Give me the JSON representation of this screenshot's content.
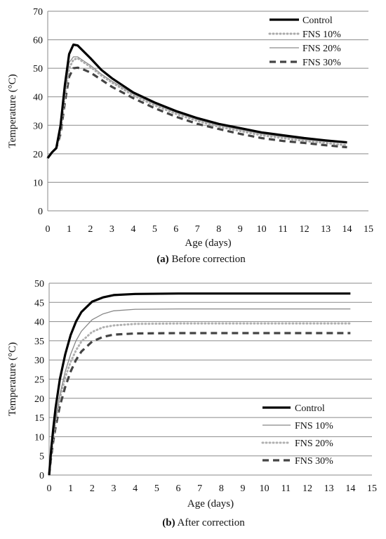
{
  "chart_data": [
    {
      "type": "line",
      "caption": {
        "label": "(a)",
        "text": " Before correction"
      },
      "xlabel": "Age (days)",
      "ylabel": "Temperature (°C)",
      "xlim": [
        0,
        15
      ],
      "ylim": [
        0,
        70
      ],
      "xticks": [
        "0",
        "1",
        "2",
        "3",
        "4",
        "5",
        "6",
        "7",
        "8",
        "9",
        "10",
        "11",
        "12",
        "13",
        "14",
        "15"
      ],
      "yticks": [
        "0",
        "10",
        "20",
        "30",
        "40",
        "50",
        "60",
        "70"
      ],
      "grid": "horizontal",
      "legend_position": "top-right",
      "series": [
        {
          "name": "Control",
          "color": "#000000",
          "style": "solid-thick",
          "points": [
            [
              0,
              18.5
            ],
            [
              0.2,
              20.5
            ],
            [
              0.4,
              22
            ],
            [
              0.6,
              30
            ],
            [
              0.8,
              44
            ],
            [
              1.0,
              55
            ],
            [
              1.2,
              58.3
            ],
            [
              1.4,
              58
            ],
            [
              1.6,
              56.5
            ],
            [
              2,
              53.5
            ],
            [
              2.5,
              49.5
            ],
            [
              3,
              46.5
            ],
            [
              4,
              41.5
            ],
            [
              5,
              38
            ],
            [
              6,
              35
            ],
            [
              7,
              32.5
            ],
            [
              8,
              30.5
            ],
            [
              9,
              29
            ],
            [
              10,
              27.5
            ],
            [
              11,
              26.5
            ],
            [
              12,
              25.5
            ],
            [
              13,
              24.7
            ],
            [
              14,
              24
            ]
          ]
        },
        {
          "name": "FNS 10%",
          "color": "#aaaaaa",
          "style": "dotted",
          "points": [
            [
              0,
              18.5
            ],
            [
              0.2,
              20.5
            ],
            [
              0.4,
              22
            ],
            [
              0.6,
              28
            ],
            [
              0.8,
              40
            ],
            [
              1.0,
              50
            ],
            [
              1.2,
              53
            ],
            [
              1.4,
              53.5
            ],
            [
              1.6,
              52.5
            ],
            [
              2,
              50.5
            ],
            [
              2.5,
              47.5
            ],
            [
              3,
              45
            ],
            [
              4,
              40.5
            ],
            [
              5,
              37
            ],
            [
              6,
              34
            ],
            [
              7,
              31.5
            ],
            [
              8,
              29.5
            ],
            [
              9,
              28
            ],
            [
              10,
              26.5
            ],
            [
              11,
              25.5
            ],
            [
              12,
              24.5
            ],
            [
              13,
              23.8
            ],
            [
              14,
              23
            ]
          ]
        },
        {
          "name": "FNS 20%",
          "color": "#8c8c8c",
          "style": "solid-thin",
          "points": [
            [
              0,
              18.5
            ],
            [
              0.2,
              20.5
            ],
            [
              0.4,
              22
            ],
            [
              0.6,
              29
            ],
            [
              0.8,
              42
            ],
            [
              1.0,
              52
            ],
            [
              1.2,
              54
            ],
            [
              1.4,
              54
            ],
            [
              1.6,
              53
            ],
            [
              2,
              51
            ],
            [
              2.5,
              48
            ],
            [
              3,
              45.5
            ],
            [
              4,
              41
            ],
            [
              5,
              37.5
            ],
            [
              6,
              34.5
            ],
            [
              7,
              32
            ],
            [
              8,
              30
            ],
            [
              9,
              28.5
            ],
            [
              10,
              27
            ],
            [
              11,
              26
            ],
            [
              12,
              25
            ],
            [
              13,
              24.3
            ],
            [
              14,
              23.8
            ]
          ]
        },
        {
          "name": "FNS 30%",
          "color": "#444444",
          "style": "dashed",
          "points": [
            [
              0,
              18.5
            ],
            [
              0.2,
              20.5
            ],
            [
              0.4,
              22
            ],
            [
              0.6,
              27
            ],
            [
              0.8,
              38
            ],
            [
              1.0,
              47
            ],
            [
              1.2,
              50
            ],
            [
              1.4,
              50.2
            ],
            [
              1.6,
              49.8
            ],
            [
              2,
              48.5
            ],
            [
              2.5,
              46
            ],
            [
              3,
              43.5
            ],
            [
              4,
              39.5
            ],
            [
              5,
              36
            ],
            [
              6,
              33
            ],
            [
              7,
              30.5
            ],
            [
              8,
              28.7
            ],
            [
              9,
              27
            ],
            [
              10,
              25.5
            ],
            [
              11,
              24.5
            ],
            [
              12,
              23.8
            ],
            [
              13,
              23
            ],
            [
              14,
              22.3
            ]
          ]
        }
      ]
    },
    {
      "type": "line",
      "caption": {
        "label": "(b)",
        "text": " After correction"
      },
      "xlabel": "Age (days)",
      "ylabel": "Temperature (°C)",
      "xlim": [
        0,
        15
      ],
      "ylim": [
        0,
        50
      ],
      "xticks": [
        "0",
        "1",
        "2",
        "3",
        "4",
        "5",
        "6",
        "7",
        "8",
        "9",
        "10",
        "11",
        "12",
        "13",
        "14",
        "15"
      ],
      "yticks": [
        "0",
        "5",
        "10",
        "15",
        "20",
        "25",
        "30",
        "35",
        "40",
        "45",
        "50"
      ],
      "grid": "horizontal",
      "legend_position": "bottom-right",
      "series": [
        {
          "name": "Control",
          "color": "#000000",
          "style": "solid-thick",
          "points": [
            [
              0,
              0
            ],
            [
              0.1,
              7
            ],
            [
              0.2,
              12.5
            ],
            [
              0.3,
              17.5
            ],
            [
              0.5,
              25
            ],
            [
              0.75,
              31.5
            ],
            [
              1.0,
              36.5
            ],
            [
              1.25,
              40
            ],
            [
              1.5,
              42.5
            ],
            [
              2.0,
              45.2
            ],
            [
              2.5,
              46.3
            ],
            [
              3,
              46.9
            ],
            [
              4,
              47.2
            ],
            [
              6,
              47.3
            ],
            [
              10,
              47.3
            ],
            [
              14,
              47.3
            ]
          ]
        },
        {
          "name": "FNS 10%",
          "color": "#888888",
          "style": "solid-thin",
          "points": [
            [
              0,
              0
            ],
            [
              0.1,
              6
            ],
            [
              0.2,
              10.5
            ],
            [
              0.3,
              14.5
            ],
            [
              0.5,
              21
            ],
            [
              0.75,
              27
            ],
            [
              1.0,
              31.5
            ],
            [
              1.25,
              35
            ],
            [
              1.5,
              37.5
            ],
            [
              2.0,
              40.5
            ],
            [
              2.5,
              42
            ],
            [
              3,
              42.8
            ],
            [
              4,
              43.2
            ],
            [
              6,
              43.3
            ],
            [
              10,
              43.3
            ],
            [
              14,
              43.3
            ]
          ]
        },
        {
          "name": "FNS 20%",
          "color": "#b0b0b0",
          "style": "dotted",
          "points": [
            [
              0,
              0
            ],
            [
              0.1,
              5.5
            ],
            [
              0.2,
              10
            ],
            [
              0.3,
              14
            ],
            [
              0.5,
              20
            ],
            [
              0.75,
              25.5
            ],
            [
              1.0,
              29.5
            ],
            [
              1.25,
              32.5
            ],
            [
              1.5,
              34.8
            ],
            [
              2.0,
              37.3
            ],
            [
              2.5,
              38.5
            ],
            [
              3,
              39
            ],
            [
              4,
              39.4
            ],
            [
              6,
              39.5
            ],
            [
              10,
              39.5
            ],
            [
              14,
              39.5
            ]
          ]
        },
        {
          "name": "FNS 30%",
          "color": "#444444",
          "style": "dashed",
          "points": [
            [
              0,
              0
            ],
            [
              0.1,
              5
            ],
            [
              0.2,
              9
            ],
            [
              0.3,
              12.5
            ],
            [
              0.5,
              18
            ],
            [
              0.75,
              23
            ],
            [
              1.0,
              27
            ],
            [
              1.25,
              30
            ],
            [
              1.5,
              32.2
            ],
            [
              2.0,
              34.8
            ],
            [
              2.5,
              36
            ],
            [
              3,
              36.6
            ],
            [
              4,
              36.9
            ],
            [
              6,
              37
            ],
            [
              10,
              37
            ],
            [
              14,
              37
            ]
          ]
        }
      ]
    }
  ]
}
